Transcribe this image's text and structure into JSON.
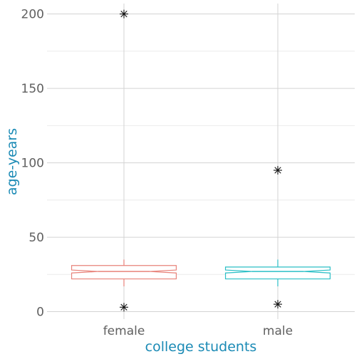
{
  "chart_data": {
    "type": "box",
    "xlabel": "college students",
    "ylabel": "age-years",
    "ylim": [
      -5,
      207
    ],
    "y_ticks": [
      0,
      50,
      100,
      150,
      200
    ],
    "y_minor_ticks": [
      25,
      75,
      125,
      175
    ],
    "grid": true,
    "notched": true,
    "categories": [
      "female",
      "male"
    ],
    "series": [
      {
        "category": "female",
        "color": "#e8837a",
        "q1": 22,
        "median": 27,
        "q3": 31,
        "notch_low": 26,
        "notch_high": 28,
        "whisker_low": 17,
        "whisker_high": 35,
        "outliers": [
          200,
          3
        ]
      },
      {
        "category": "male",
        "color": "#2bbfc6",
        "q1": 22,
        "median": 27,
        "q3": 30,
        "notch_low": 26,
        "notch_high": 28,
        "whisker_low": 17,
        "whisker_high": 35,
        "outliers": [
          95,
          5
        ]
      }
    ]
  }
}
